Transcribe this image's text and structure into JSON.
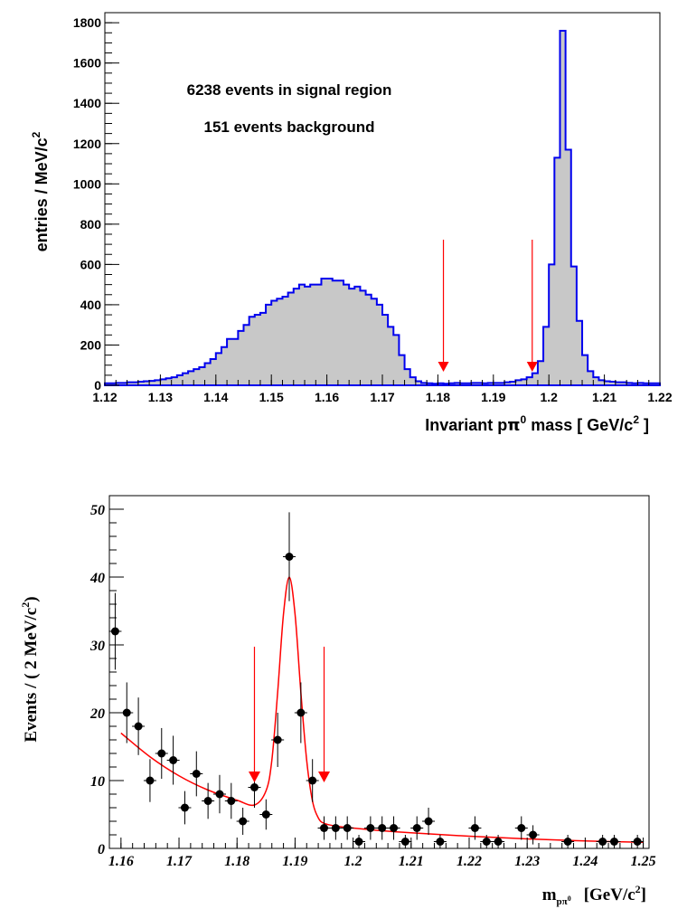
{
  "chart_data": [
    {
      "type": "histogram",
      "ylabel": "entries / MeV/c",
      "ylabel_sup": "2",
      "xlabel_parts": [
        "Invariant p",
        "π",
        "0",
        " mass [ GeV/c",
        "2",
        " ]"
      ],
      "xlim": [
        1.12,
        1.22
      ],
      "ylim": [
        0,
        1850
      ],
      "x_ticks": [
        "1.12",
        "1.13",
        "1.14",
        "1.15",
        "1.16",
        "1.17",
        "1.18",
        "1.19",
        "1.2",
        "1.21",
        "1.22"
      ],
      "y_ticks": [
        "0",
        "200",
        "400",
        "600",
        "800",
        "1000",
        "1200",
        "1400",
        "1600",
        "1800"
      ],
      "annotations": [
        "6238 events in signal region",
        "151 events background"
      ],
      "signal_window_arrows": [
        1.181,
        1.197
      ],
      "bin_width": 0.001,
      "bin_start": 1.12,
      "values": [
        10,
        10,
        12,
        12,
        15,
        15,
        18,
        20,
        22,
        25,
        30,
        35,
        40,
        50,
        60,
        70,
        80,
        90,
        110,
        130,
        160,
        190,
        230,
        230,
        270,
        300,
        340,
        350,
        360,
        400,
        420,
        430,
        440,
        460,
        480,
        500,
        490,
        500,
        500,
        530,
        530,
        520,
        520,
        500,
        480,
        490,
        470,
        450,
        430,
        400,
        350,
        290,
        250,
        150,
        80,
        40,
        20,
        12,
        10,
        8,
        10,
        8,
        10,
        12,
        10,
        10,
        12,
        12,
        10,
        12,
        12,
        12,
        15,
        18,
        25,
        30,
        40,
        60,
        120,
        290,
        600,
        1130,
        1760,
        1170,
        590,
        320,
        150,
        70,
        40,
        25,
        20,
        18,
        15,
        15,
        12,
        10,
        12,
        10,
        10,
        10
      ],
      "fill_color": "#c8c8c8",
      "line_color": "#0000ee",
      "arrow_color": "#ff0000"
    },
    {
      "type": "scatter",
      "ylabel_parts": [
        "Events / ( 2 MeV/c",
        "2",
        ")"
      ],
      "xlabel_parts": [
        "m",
        "pπ",
        "0",
        "[GeV/c",
        "2",
        "]"
      ],
      "xlim": [
        1.158,
        1.251
      ],
      "ylim": [
        0,
        52
      ],
      "x_ticks": [
        "1.16",
        "1.17",
        "1.18",
        "1.19",
        "1.2",
        "1.21",
        "1.22",
        "1.23",
        "1.24",
        "1.25"
      ],
      "y_ticks": [
        "0",
        "10",
        "20",
        "30",
        "40",
        "50"
      ],
      "signal_window_arrows": [
        1.183,
        1.195
      ],
      "x": [
        1.159,
        1.161,
        1.163,
        1.165,
        1.167,
        1.169,
        1.171,
        1.173,
        1.175,
        1.177,
        1.179,
        1.181,
        1.183,
        1.185,
        1.187,
        1.189,
        1.191,
        1.193,
        1.195,
        1.197,
        1.199,
        1.201,
        1.203,
        1.205,
        1.207,
        1.209,
        1.211,
        1.213,
        1.215,
        1.221,
        1.223,
        1.225,
        1.229,
        1.231,
        1.237,
        1.243,
        1.245,
        1.249
      ],
      "y": [
        32,
        20,
        18,
        10,
        14,
        13,
        6,
        11,
        7,
        8,
        7,
        4,
        9,
        5,
        16,
        43,
        20,
        10,
        3,
        3,
        3,
        1,
        3,
        3,
        3,
        1,
        3,
        4,
        1,
        3,
        1,
        1,
        3,
        2,
        1,
        1,
        1,
        1
      ],
      "fit": {
        "x": [
          1.16,
          1.165,
          1.17,
          1.175,
          1.18,
          1.183,
          1.185,
          1.186,
          1.187,
          1.188,
          1.189,
          1.19,
          1.191,
          1.192,
          1.193,
          1.194,
          1.195,
          1.197,
          1.2,
          1.205,
          1.21,
          1.22,
          1.23,
          1.24,
          1.25
        ],
        "y": [
          17,
          13.5,
          10.7,
          8.6,
          7.1,
          6.4,
          8.5,
          13,
          23,
          34.5,
          40,
          34.5,
          23,
          13,
          7,
          4.5,
          3.7,
          3.3,
          3.0,
          2.6,
          2.3,
          1.8,
          1.4,
          1.1,
          0.9
        ]
      },
      "marker_color": "#000000",
      "fit_color": "#ff0000",
      "arrow_color": "#ff0000"
    }
  ]
}
